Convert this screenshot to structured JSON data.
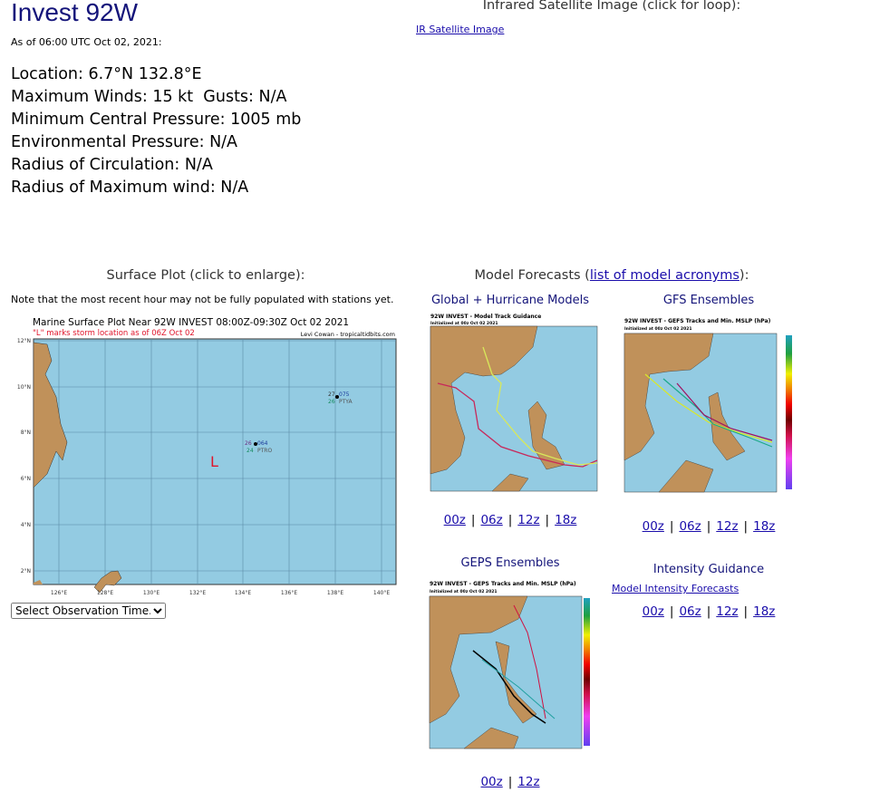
{
  "header": {
    "title": "Invest 92W",
    "as_of": "As of 06:00 UTC Oct 02, 2021:"
  },
  "details": [
    "Location: 6.7°N 132.8°E",
    "Maximum Winds: 15 kt  Gusts: N/A",
    "Minimum Central Pressure: 1005 mb",
    "Environmental Pressure: N/A",
    "Radius of Circulation: N/A",
    "Radius of Maximum wind: N/A"
  ],
  "satellite": {
    "heading": "Infrared Satellite Image (click for loop):",
    "link": "IR Satellite Image"
  },
  "surface": {
    "heading": "Surface Plot (click to enlarge):",
    "note": "Note that the most recent hour may not be fully populated with stations yet.",
    "plot_title": "Marine Surface Plot Near 92W INVEST 08:00Z-09:30Z Oct 02 2021",
    "plot_subtitle": "\"L\" marks storm location as of 06Z Oct 02",
    "credit": "Levi Cowan - tropicaltidbits.com",
    "storm_marker": "L",
    "lat_labels": [
      "12°N",
      "10°N",
      "8°N",
      "6°N",
      "4°N",
      "2°N"
    ],
    "lon_labels": [
      "126°E",
      "128°E",
      "130°E",
      "132°E",
      "134°E",
      "136°E",
      "138°E",
      "140°E"
    ],
    "stations": [
      {
        "id": "PTRO",
        "temp": "26",
        "dew": "24",
        "pressure": "064"
      },
      {
        "id": "PTYA",
        "temp": "27",
        "dew": "26",
        "pressure": "075"
      }
    ],
    "select": "Select Observation Time..."
  },
  "models": {
    "heading_prefix": "Model Forecasts (",
    "heading_link": "list of model acronyms",
    "heading_suffix": "):",
    "global": {
      "title": "Global + Hurricane Models",
      "img_title": "92W INVEST - Model Track Guidance",
      "img_sub": "Initialized at 00z Oct 02 2021",
      "links": [
        "00z",
        "06z",
        "12z",
        "18z"
      ]
    },
    "gfs": {
      "title": "GFS Ensembles",
      "img_title": "92W INVEST - GEFS Tracks and Min. MSLP (hPa)",
      "img_sub": "Initialized at 00z Oct 02 2021",
      "links": [
        "00z",
        "06z",
        "12z",
        "18z"
      ]
    },
    "geps": {
      "title": "GEPS Ensembles",
      "img_title": "92W INVEST - GEPS Tracks and Min. MSLP (hPa)",
      "img_sub": "Initialized at 00z Oct 02 2021",
      "links": [
        "00z",
        "12z"
      ]
    },
    "intensity": {
      "title": "Intensity Guidance",
      "link": "Model Intensity Forecasts",
      "links": [
        "00z",
        "06z",
        "12z",
        "18z"
      ]
    }
  },
  "colors": {
    "ocean": "#93cbe2",
    "land": "#c0915a",
    "title": "#14147a",
    "link": "#1a0dab",
    "storm": "#e0142a"
  }
}
